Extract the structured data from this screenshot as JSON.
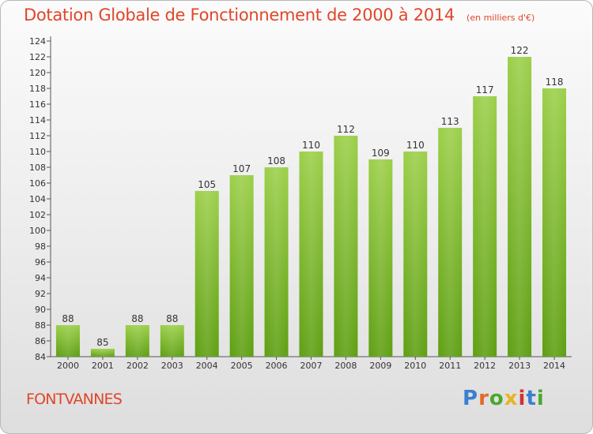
{
  "header": {
    "title": "Dotation Globale de Fonctionnement de 2000 à 2014",
    "subtitle": "(en milliers d'€)"
  },
  "footer": {
    "commune": "FONTVANNES",
    "logo_text": "Proxiti"
  },
  "colors": {
    "title": "#e0462a",
    "bar_top": "#9ccf4a",
    "bar_bottom": "#5e9f12"
  },
  "chart_data": {
    "type": "bar",
    "title": "Dotation Globale de Fonctionnement de 2000 à 2014",
    "subtitle": "(en milliers d'€)",
    "categories": [
      "2000",
      "2001",
      "2002",
      "2003",
      "2004",
      "2005",
      "2006",
      "2007",
      "2008",
      "2009",
      "2010",
      "2011",
      "2012",
      "2013",
      "2014"
    ],
    "values": [
      88,
      85,
      88,
      88,
      105,
      107,
      108,
      110,
      112,
      109,
      110,
      113,
      117,
      122,
      118
    ],
    "ylim": [
      84,
      124
    ],
    "yticks": [
      84,
      86,
      88,
      90,
      92,
      94,
      96,
      98,
      100,
      102,
      104,
      106,
      108,
      110,
      112,
      114,
      116,
      118,
      120,
      122,
      124
    ],
    "grid": false,
    "xlabel": "",
    "ylabel": ""
  }
}
